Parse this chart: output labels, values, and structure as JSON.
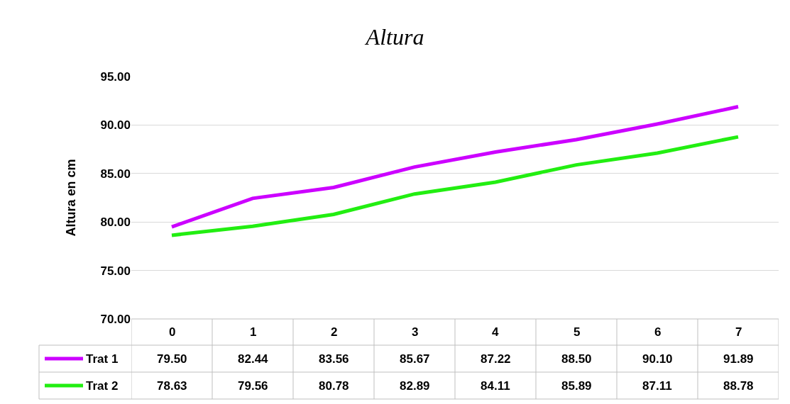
{
  "chart_data": {
    "type": "line",
    "title": "Altura",
    "ylabel": "Altura en cm",
    "categories": [
      "0",
      "1",
      "2",
      "3",
      "4",
      "5",
      "6",
      "7"
    ],
    "series": [
      {
        "name": "Trat 1",
        "color": "#cc00ff",
        "values": [
          79.5,
          82.44,
          83.56,
          85.67,
          87.22,
          88.5,
          90.1,
          91.89
        ],
        "value_labels": [
          "79.50",
          "82.44",
          "83.56",
          "85.67",
          "87.22",
          "88.50",
          "90.10",
          "91.89"
        ]
      },
      {
        "name": "Trat 2",
        "color": "#22ee11",
        "values": [
          78.63,
          79.56,
          80.78,
          82.89,
          84.11,
          85.89,
          87.11,
          88.78
        ],
        "value_labels": [
          "78.63",
          "79.56",
          "80.78",
          "82.89",
          "84.11",
          "85.89",
          "87.11",
          "88.78"
        ]
      }
    ],
    "ylim": [
      70,
      95
    ],
    "yticks": [
      {
        "value": 70,
        "label": "70.00"
      },
      {
        "value": 75,
        "label": "75.00"
      },
      {
        "value": 80,
        "label": "80.00"
      },
      {
        "value": 85,
        "label": "85.00"
      },
      {
        "value": 90,
        "label": "90.00"
      },
      {
        "value": 95,
        "label": "95.00"
      }
    ],
    "grid": "y",
    "legend": "bottom left",
    "marker": "none",
    "line_style": "solid"
  }
}
